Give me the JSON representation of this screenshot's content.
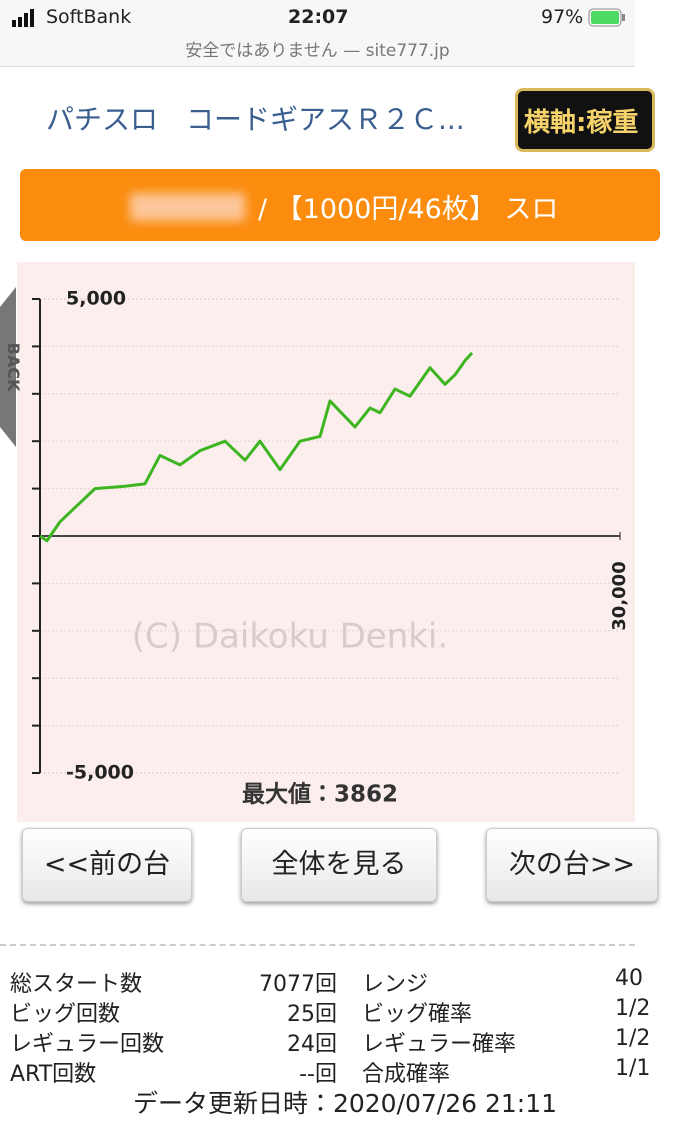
{
  "status_bar": {
    "carrier": "SoftBank",
    "time": "22:07",
    "battery": "97%",
    "url": "安全ではありません — site777.jp"
  },
  "header": {
    "title": "パチスロ　コードギアスＲ２Ｃ...",
    "button": "横軸:稼重"
  },
  "machine_bar": {
    "text": "/ 【1000円/46枚】 スロ"
  },
  "back_tab": "BACK",
  "chart_data": {
    "type": "line",
    "color": "#3cb521",
    "x": [
      0,
      362,
      1034,
      1810,
      2845,
      4397,
      5431,
      6207,
      7241,
      8276,
      9569,
      10603,
      11379,
      12414,
      13448,
      14483,
      15000,
      16293,
      17069,
      17586,
      18362,
      19138,
      20172,
      20948,
      21466,
      21983,
      22345
    ],
    "values": [
      0,
      -100,
      300,
      600,
      1000,
      1050,
      1100,
      1700,
      1500,
      1800,
      2000,
      1600,
      2000,
      1400,
      2000,
      2100,
      2850,
      2300,
      2700,
      2600,
      3100,
      2950,
      3550,
      3200,
      3400,
      3700,
      3862
    ],
    "xlim": [
      0,
      30000
    ],
    "xticks": [
      {
        "value": 30000,
        "label": "30,000"
      }
    ],
    "ylim": [
      -5000,
      5000
    ],
    "yticks": [
      {
        "value": -5000,
        "label": "-5,000"
      },
      {
        "value": 5000,
        "label": "5,000"
      }
    ],
    "grid": true,
    "annotations": [
      "(C) Daikoku Denki.",
      "最大値：3862"
    ]
  },
  "buttons": [
    "<<前の台",
    "全体を見る",
    "次の台>>"
  ],
  "stats": {
    "rows": [
      [
        "総スタート数",
        "7077回",
        "レンジ",
        "40"
      ],
      [
        "ビッグ回数",
        "25回",
        "ビッグ確率",
        "1/2"
      ],
      [
        "レギュラー回数",
        "24回",
        "レギュラー確率",
        "1/2"
      ],
      [
        "ART回数",
        "--回",
        "合成確率",
        "1/1"
      ]
    ]
  },
  "footer": "データ更新日時：2020/07/26 21:11"
}
